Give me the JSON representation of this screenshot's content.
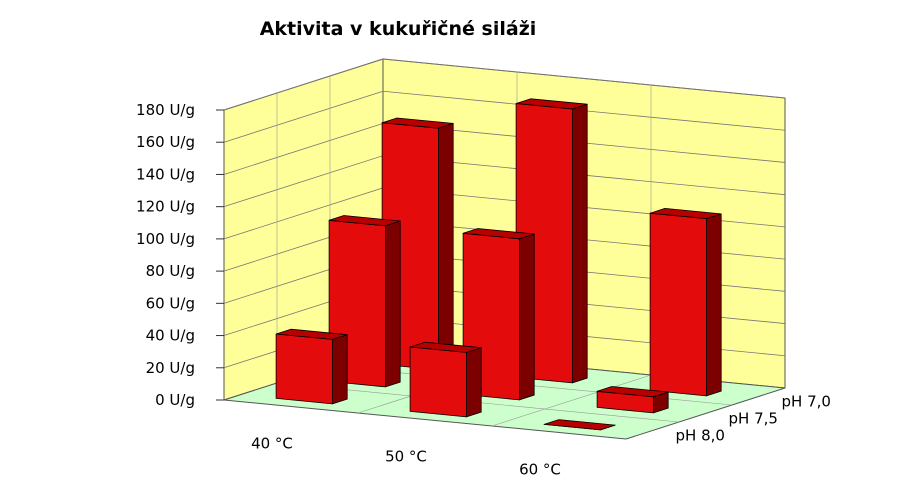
{
  "chart_data": {
    "type": "bar",
    "title": "Aktivita v kukuřičné siláži",
    "categories": [
      "40 °C",
      "50 °C",
      "60 °C"
    ],
    "depth_categories": [
      "pH 8,0",
      "pH 7,5",
      "pH 7,0"
    ],
    "series": [
      {
        "name": "pH 8,0",
        "values": [
          40,
          40,
          0
        ]
      },
      {
        "name": "pH 7,5",
        "values": [
          100,
          100,
          10
        ]
      },
      {
        "name": "pH 7,0",
        "values": [
          150,
          170,
          110
        ]
      }
    ],
    "y_ticks": [
      "0 U/g",
      "20 U/g",
      "40 U/g",
      "60 U/g",
      "80 U/g",
      "100 U/g",
      "120 U/g",
      "140 U/g",
      "160 U/g",
      "180 U/g"
    ],
    "ylim": [
      0,
      180
    ],
    "grid": true,
    "colors": {
      "bar_front": "#e30b0b",
      "bar_side": "#7c0000",
      "bar_top": "#b90000",
      "back_wall": "#ffff99",
      "side_wall": "#ffff99",
      "floor": "#ccffcc",
      "outline": "#000000"
    }
  }
}
